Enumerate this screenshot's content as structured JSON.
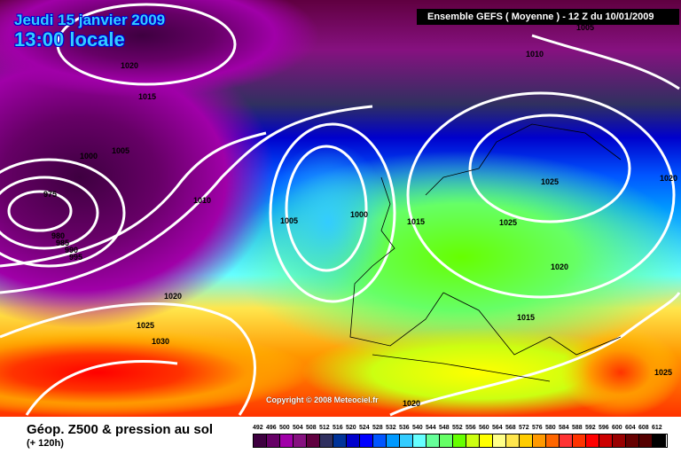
{
  "title": {
    "date": "Jeudi 15 janvier 2009",
    "time": "13:00 locale"
  },
  "header": "Ensemble GEFS ( Moyenne )  -  12 Z du 10/01/2009",
  "footer": {
    "title": "Géop. Z500 & pression au sol",
    "subtitle": "(+ 120h)"
  },
  "copyright": "Copyright © 2008 Meteociel.fr",
  "legend": {
    "values": [
      "492",
      "496",
      "500",
      "504",
      "508",
      "512",
      "516",
      "520",
      "524",
      "528",
      "532",
      "536",
      "540",
      "544",
      "548",
      "552",
      "556",
      "560",
      "564",
      "568",
      "572",
      "576",
      "580",
      "584",
      "588",
      "592",
      "596",
      "600",
      "604",
      "608",
      "612"
    ],
    "colors": [
      "#3e0040",
      "#660066",
      "#a000a8",
      "#861180",
      "#600040",
      "#303060",
      "#003399",
      "#0000cc",
      "#0000ff",
      "#0055ff",
      "#0099ff",
      "#33ccff",
      "#66ffff",
      "#66ff99",
      "#66ff66",
      "#66ff00",
      "#ccff11",
      "#ffff00",
      "#ffff88",
      "#ffe64d",
      "#ffcc00",
      "#ff9900",
      "#ff6600",
      "#ff3333",
      "#ff3300",
      "#ff0000",
      "#cc0000",
      "#990000",
      "#660000",
      "#550000",
      "#000000"
    ]
  },
  "isobars": [
    "1005",
    "1020",
    "1015",
    "1010",
    "1005",
    "1000",
    "975",
    "980",
    "985",
    "990",
    "995",
    "1010",
    "1005",
    "1000",
    "1015",
    "1025",
    "1025",
    "1020",
    "1020",
    "1025",
    "1030",
    "1015",
    "1025",
    "1020",
    "1020"
  ]
}
